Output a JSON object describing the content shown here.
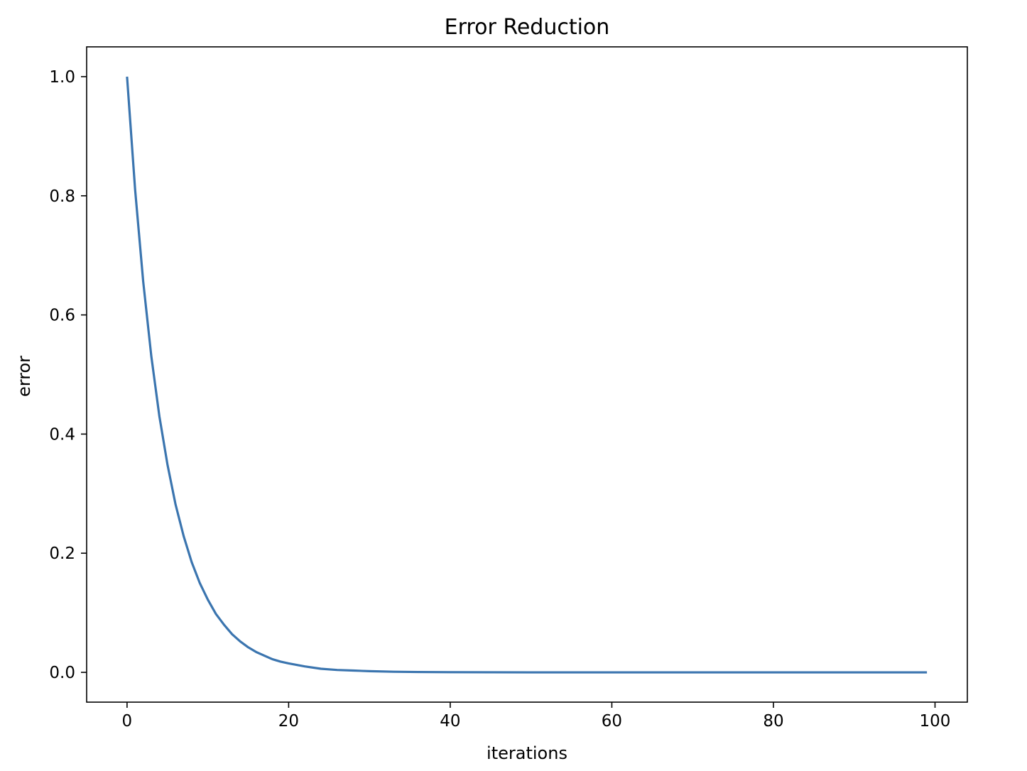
{
  "chart_data": {
    "type": "line",
    "title": "Error Reduction",
    "xlabel": "iterations",
    "ylabel": "error",
    "xlim": [
      -5,
      104
    ],
    "ylim": [
      -0.05,
      1.05
    ],
    "xticks": [
      0,
      20,
      40,
      60,
      80,
      100
    ],
    "xtick_labels": [
      "0",
      "20",
      "40",
      "60",
      "80",
      "100"
    ],
    "yticks": [
      0.0,
      0.2,
      0.4,
      0.6,
      0.8,
      1.0
    ],
    "ytick_labels": [
      "0.0",
      "0.2",
      "0.4",
      "0.6",
      "0.8",
      "1.0"
    ],
    "grid": false,
    "series": [
      {
        "color": "#3b75af",
        "x": [
          0,
          1,
          2,
          3,
          4,
          5,
          6,
          7,
          8,
          9,
          10,
          11,
          12,
          13,
          14,
          15,
          16,
          17,
          18,
          19,
          20,
          22,
          24,
          26,
          28,
          30,
          33,
          36,
          40,
          45,
          50,
          60,
          70,
          80,
          90,
          99
        ],
        "y": [
          1.0,
          0.81,
          0.656,
          0.531,
          0.43,
          0.349,
          0.282,
          0.229,
          0.185,
          0.15,
          0.122,
          0.098,
          0.08,
          0.064,
          0.052,
          0.042,
          0.034,
          0.028,
          0.022,
          0.018,
          0.015,
          0.01,
          0.006,
          0.004,
          0.003,
          0.002,
          0.001,
          0.0006,
          0.0003,
          0.0001,
          0.0,
          0.0,
          0.0,
          0.0,
          0.0,
          0.0
        ]
      }
    ]
  }
}
